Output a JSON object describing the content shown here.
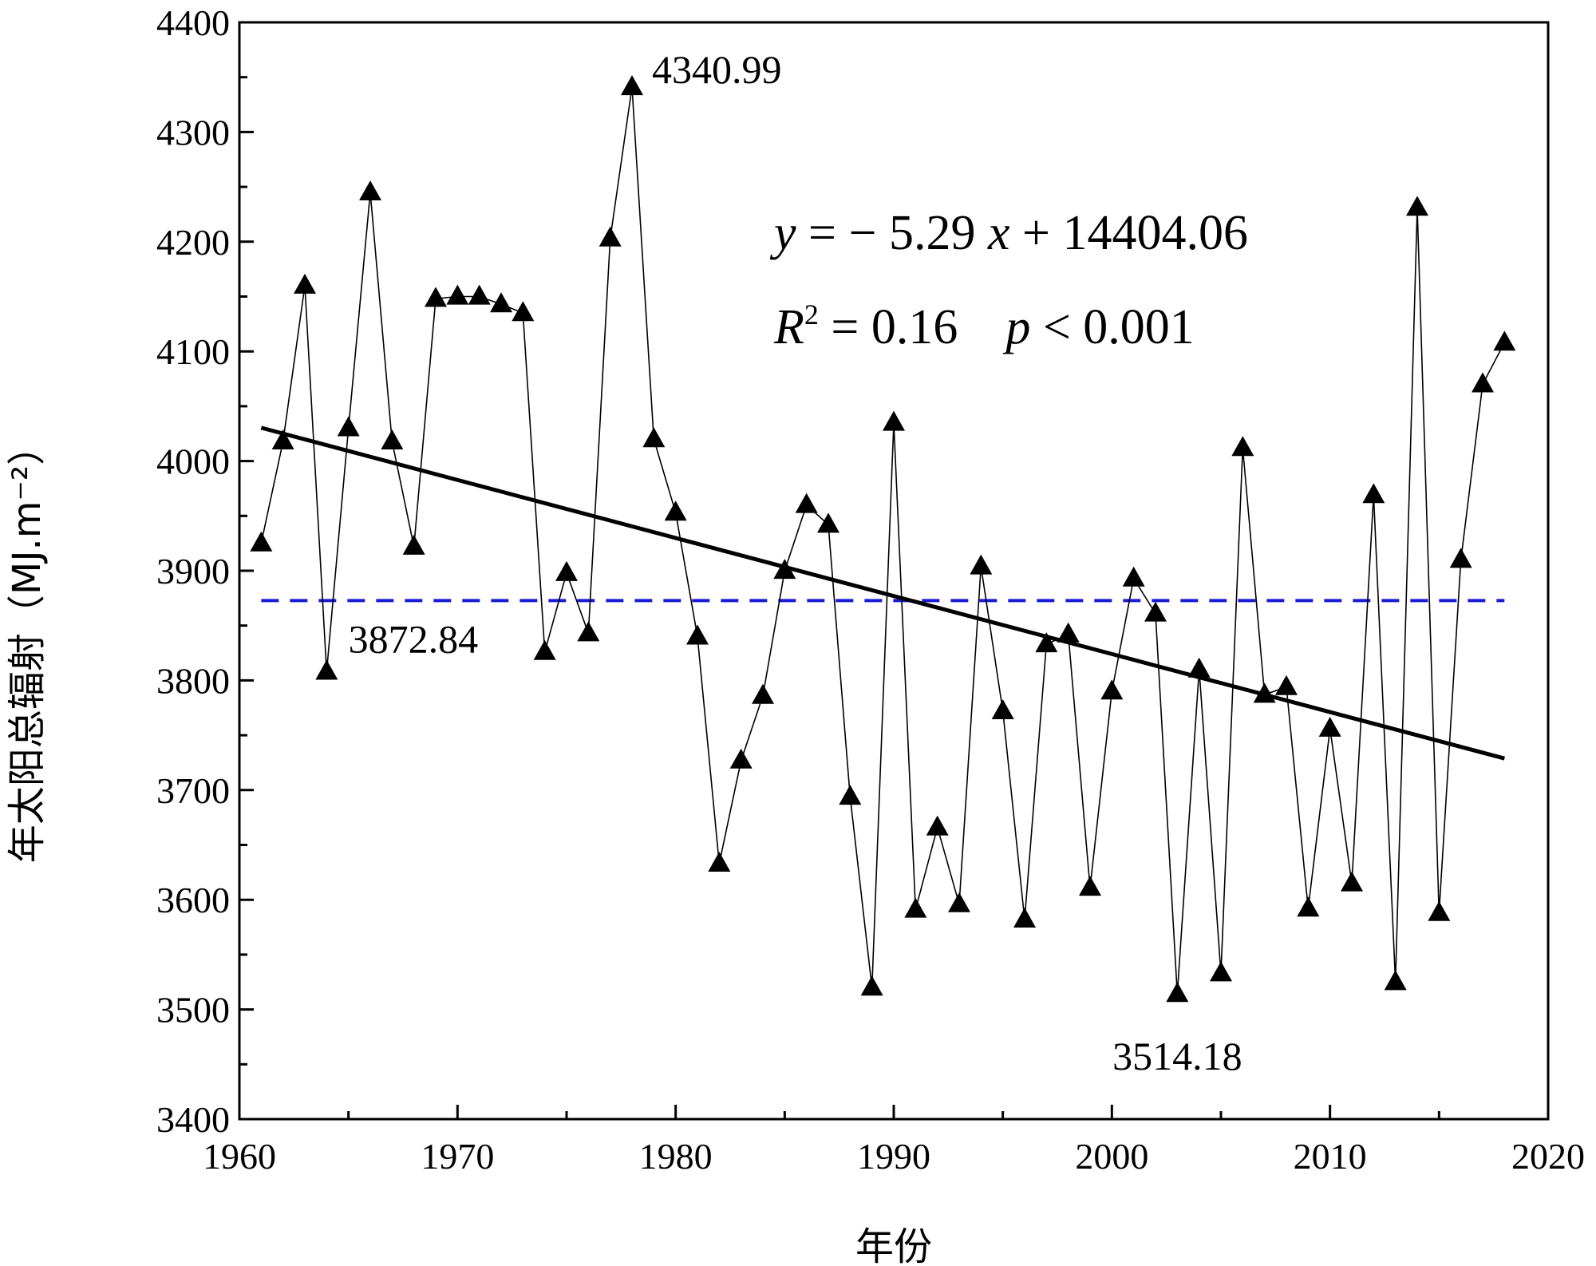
{
  "chart_data": {
    "type": "line",
    "xlabel": "年份",
    "ylabel": "年太阳总辐射（MJ.m⁻²）",
    "xlim": [
      1960,
      2020
    ],
    "ylim": [
      3400,
      4400
    ],
    "x_ticks": [
      1960,
      1970,
      1980,
      1990,
      2000,
      2010,
      2020
    ],
    "y_ticks": [
      3400,
      3500,
      3600,
      3700,
      3800,
      3900,
      4000,
      4100,
      4200,
      4300,
      4400
    ],
    "series": [
      {
        "marker": "triangle",
        "color": "#000000",
        "x": [
          1961,
          1962,
          1963,
          1964,
          1965,
          1966,
          1967,
          1968,
          1969,
          1970,
          1971,
          1972,
          1973,
          1974,
          1975,
          1976,
          1977,
          1978,
          1979,
          1980,
          1981,
          1982,
          1983,
          1984,
          1985,
          1986,
          1987,
          1988,
          1989,
          1990,
          1991,
          1992,
          1993,
          1994,
          1995,
          1996,
          1997,
          1998,
          1999,
          2000,
          2001,
          2002,
          2003,
          2004,
          2005,
          2006,
          2007,
          2008,
          2009,
          2010,
          2011,
          2012,
          2013,
          2014,
          2015,
          2016,
          2017,
          2018
        ],
        "y": [
          3925,
          4018,
          4160,
          3808,
          4030,
          4245,
          4018,
          3922,
          4148,
          4150,
          4150,
          4143,
          4135,
          3826,
          3898,
          3843,
          4203,
          4340.99,
          4020,
          3953,
          3840,
          3633,
          3727,
          3786,
          3900,
          3960,
          3942,
          3694,
          3520,
          4035,
          3591,
          3666,
          3596,
          3904,
          3772,
          3582,
          3833,
          3842,
          3611,
          3790,
          3893,
          3861,
          3514.18,
          3810,
          3533,
          4012,
          3787,
          3794,
          3592,
          3756,
          3615,
          3969,
          3525,
          4231,
          3588,
          3910,
          4070,
          4108
        ]
      }
    ],
    "trend": {
      "intercept": 14404.06,
      "slope": -5.29,
      "x_range": [
        1961,
        2018
      ],
      "color": "#000000"
    },
    "mean_line": {
      "value": 3872.84,
      "color": "#1a1ad6",
      "style": "dashed"
    },
    "annotations": {
      "max_label": "4340.99",
      "min_label": "3514.18",
      "mean_label": "3872.84"
    },
    "equation": {
      "line1": {
        "y": "y",
        "eq": " = − 5.29 ",
        "x": "x",
        "rest": " + 14404.06"
      },
      "line2": {
        "r": "R",
        "sup": "2",
        "eq": " = 0.16",
        "p": "p",
        "rest": " < 0.001"
      }
    }
  }
}
